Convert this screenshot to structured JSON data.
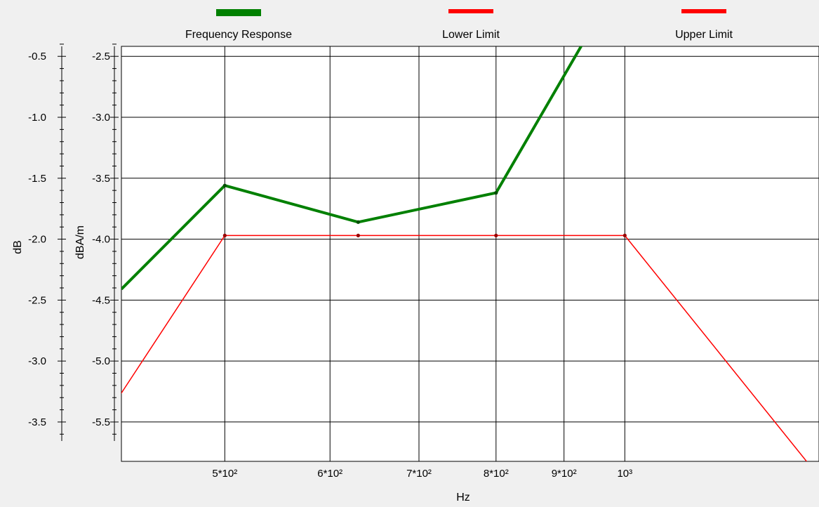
{
  "chart_data": {
    "type": "line",
    "title": "",
    "xlabel": "Hz",
    "x_scale": "log",
    "xlim": [
      418,
      1400
    ],
    "x_ticks": [
      {
        "value": 500,
        "label": "5*10²"
      },
      {
        "value": 600,
        "label": "6*10²"
      },
      {
        "value": 700,
        "label": "7*10²"
      },
      {
        "value": 800,
        "label": "8*10²"
      },
      {
        "value": 900,
        "label": "9*10²"
      },
      {
        "value": 1000,
        "label": "10³"
      }
    ],
    "y_axes": [
      {
        "id": "left",
        "label": "dB",
        "ylim": [
          -0.418,
          -3.823
        ],
        "ticks": [
          -0.5,
          -1.0,
          -1.5,
          -2.0,
          -2.5,
          -3.0,
          -3.5
        ],
        "tick_labels": [
          "-0.5",
          "-1.0",
          "-1.5",
          "-2.0",
          "-2.5",
          "-3.0",
          "-3.5"
        ]
      },
      {
        "id": "right",
        "label": "dBA/m",
        "ylim": [
          -2.418,
          -5.823
        ],
        "ticks": [
          -2.5,
          -3.0,
          -3.5,
          -4.0,
          -4.5,
          -5.0,
          -5.5
        ],
        "tick_labels": [
          "-2.5",
          "-3.0",
          "-3.5",
          "-4.0",
          "-4.5",
          "-5.0",
          "-5.5"
        ]
      }
    ],
    "grid": true,
    "legend": {
      "position": "top"
    },
    "series": [
      {
        "name": "Frequency Response",
        "color": "#008000",
        "axis": "right",
        "x": [
          418,
          500,
          630,
          800,
          1000
        ],
        "y": [
          -4.41,
          -3.56,
          -3.86,
          -3.62,
          -1.8
        ],
        "point_markers": [
          false,
          true,
          true,
          true,
          false
        ]
      },
      {
        "name": "Lower Limit",
        "color": "#ff0000",
        "axis": "right",
        "x": [
          400,
          500,
          630,
          800,
          1000,
          1400
        ],
        "y": [
          -5.58,
          -3.97,
          -3.97,
          -3.97,
          -3.97,
          -5.95
        ],
        "point_markers": [
          false,
          true,
          true,
          true,
          true,
          false
        ]
      },
      {
        "name": "Upper Limit",
        "color": "#ff0000",
        "axis": "right",
        "x": [],
        "y": []
      }
    ]
  }
}
